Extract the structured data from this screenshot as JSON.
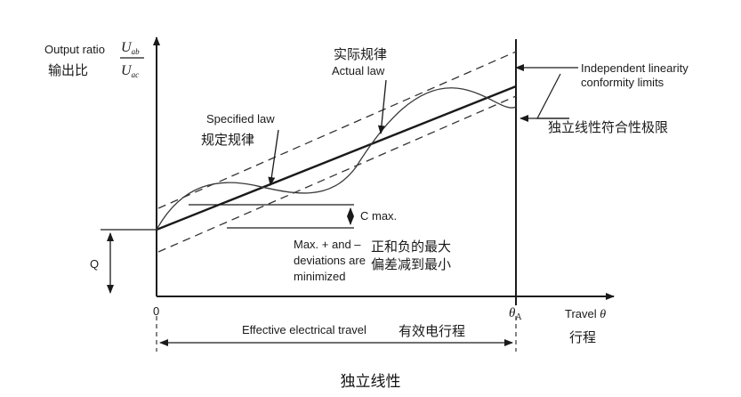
{
  "y_axis": {
    "label_en": "Output ratio",
    "label_cn": "输出比",
    "numerator": "U",
    "numerator_sub": "ab",
    "denominator": "U",
    "denominator_sub": "ac"
  },
  "x_axis": {
    "origin": "0",
    "end_symbol": "θ",
    "end_sub": "A",
    "label_en": "Travel",
    "label_symbol": "θ",
    "label_cn": "行程"
  },
  "annotations": {
    "actual_cn": "实际规律",
    "actual_en": "Actual law",
    "specified_en": "Specified law",
    "specified_cn": "规定规律",
    "limits_en_1": "Independent linearity",
    "limits_en_2": "conformity limits",
    "limits_cn": "独立线性符合性极限",
    "c_max": "C max.",
    "q": "Q",
    "dev_en_1": "Max. + and –",
    "dev_en_2": "deviations are",
    "dev_en_3": "minimized",
    "dev_cn_1": "正和负的最大",
    "dev_cn_2": "偏差减到最小",
    "travel_en": "Effective electrical travel",
    "travel_cn": "有效电行程"
  },
  "caption": "独立线性"
}
